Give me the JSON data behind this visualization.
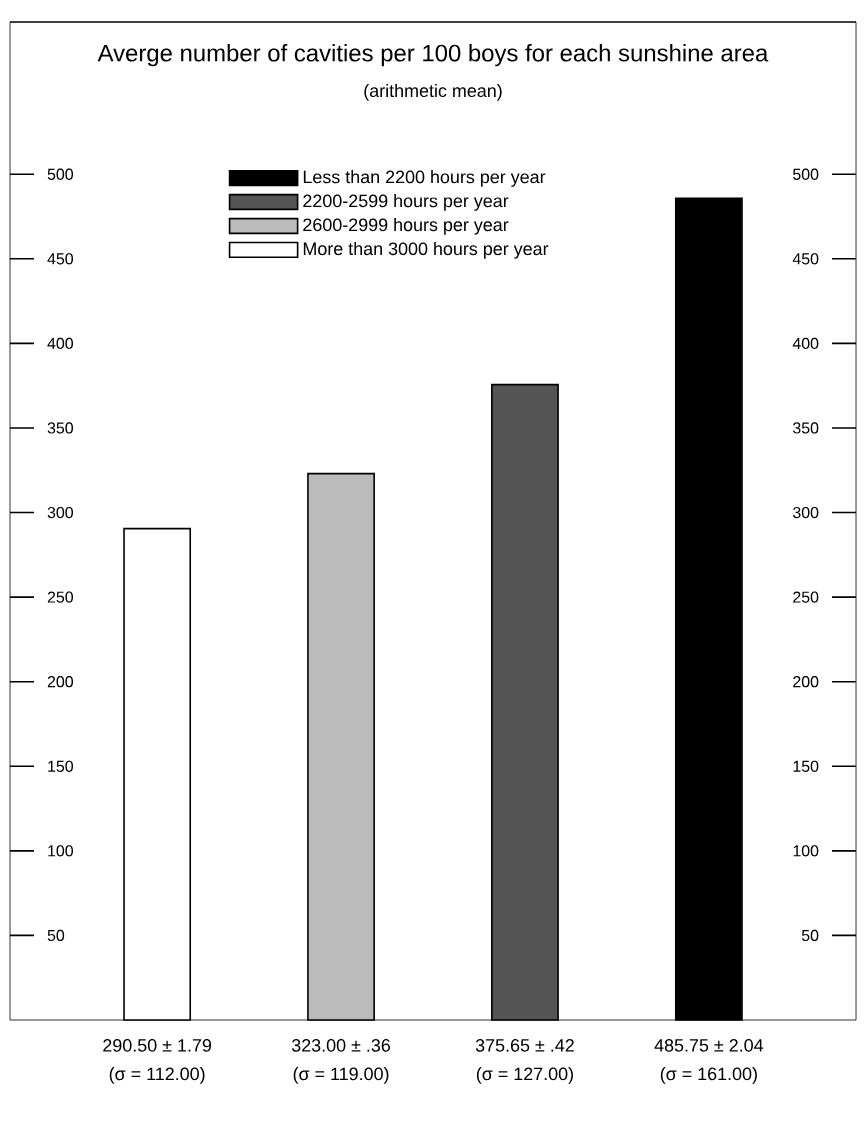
{
  "chart_data": {
    "type": "bar",
    "title": "Averge number of cavities per 100 boys for each sunshine area",
    "subtitle": "(arithmetic mean)",
    "categories": [
      null,
      null,
      null,
      null
    ],
    "series": [
      {
        "name": "More than 3000 hours per year",
        "color": "#ffffff",
        "values": [
          290.5,
          null,
          null,
          null
        ],
        "value_labels": [
          "290.50 ± 1.79",
          null,
          null,
          null
        ]
      },
      {
        "name": "2600-2999 hours per year",
        "color": "#bbbbbb",
        "values": [
          null,
          323.0,
          null,
          null
        ],
        "value_labels": [
          null,
          "323.00 ± .36",
          null,
          null
        ]
      },
      {
        "name": "2200-2599 hours per year",
        "color": "#555555",
        "values": [
          null,
          null,
          375.65,
          null
        ],
        "value_labels": [
          null,
          null,
          "375.65 ± .42",
          null
        ]
      },
      {
        "name": "Less than 2200 hours per year",
        "color": "#000000",
        "values": [
          null,
          null,
          null,
          485.75
        ],
        "value_labels": [
          null,
          null,
          null,
          "485.75 ± 2.04"
        ]
      }
    ],
    "annotations": [
      "(σ = 112.00)",
      "(σ = 119.00)",
      "(σ = 127.00)",
      "(σ = 161.00)"
    ],
    "ylim": [
      0,
      590
    ],
    "yticks": [
      50,
      100,
      150,
      200,
      250,
      300,
      350,
      400,
      450,
      500
    ],
    "y2lim": [
      0,
      590
    ],
    "y2ticks": [
      50,
      100,
      150,
      200,
      250,
      300,
      350,
      400,
      450,
      500
    ],
    "legend": "top",
    "grid": false
  }
}
